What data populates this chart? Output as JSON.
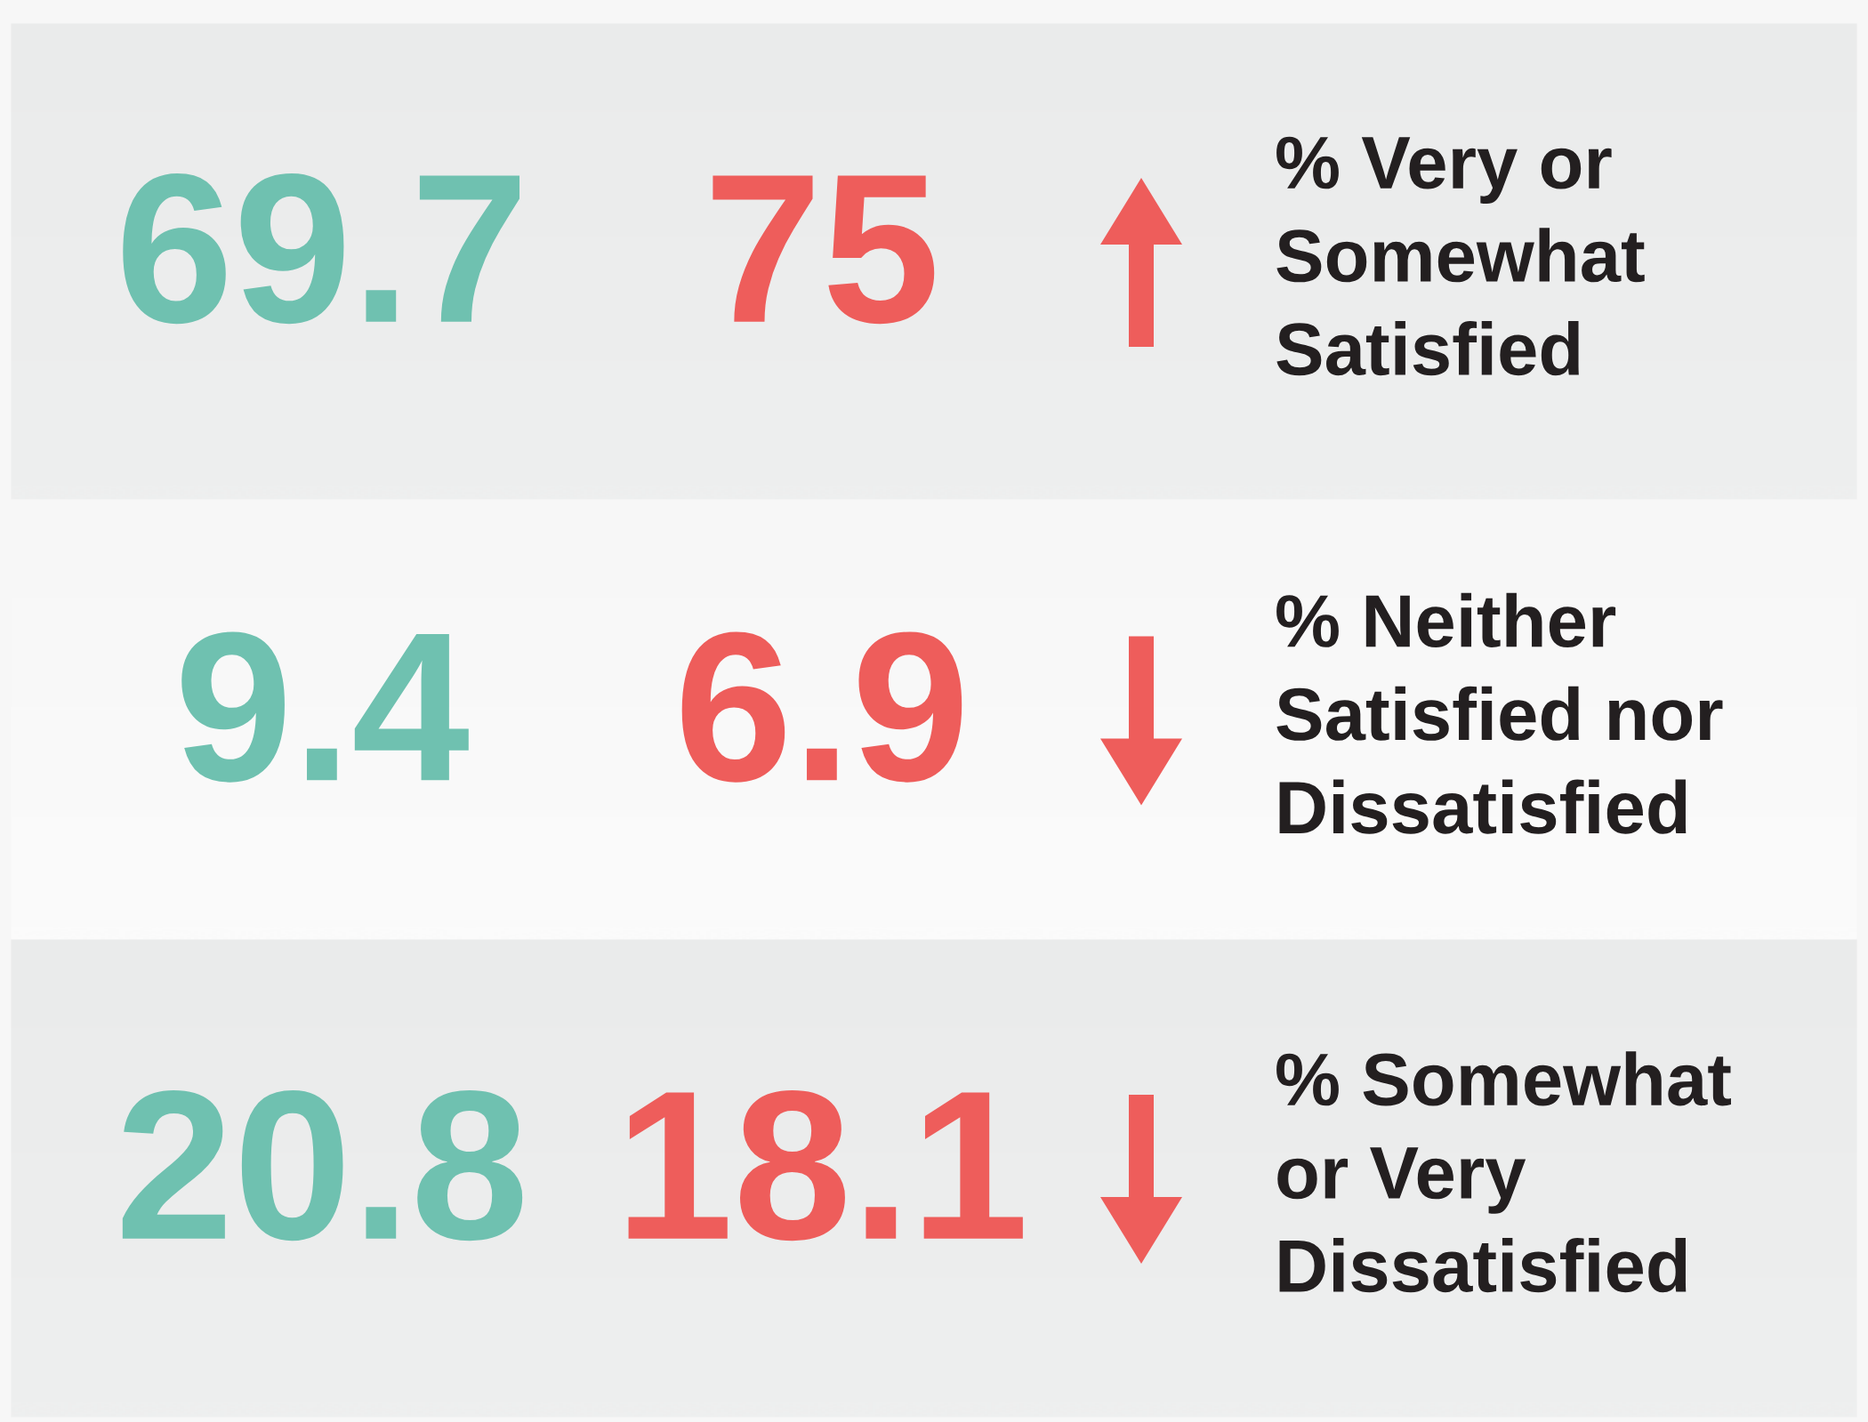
{
  "chart_data": {
    "type": "other",
    "categories": [
      "% Very or\nSomewhat\nSatisfied",
      "% Neither\nSatisfied nor\nDissatisfied",
      "% Somewhat\nor Very\nDissatisfied"
    ],
    "series": [
      {
        "color": "#6fc1b0",
        "values": [
          69.7,
          9.4,
          20.8
        ]
      },
      {
        "color": "#ee5d5b",
        "values": [
          75,
          6.9,
          18.1
        ]
      }
    ],
    "data_labels": true
  }
}
